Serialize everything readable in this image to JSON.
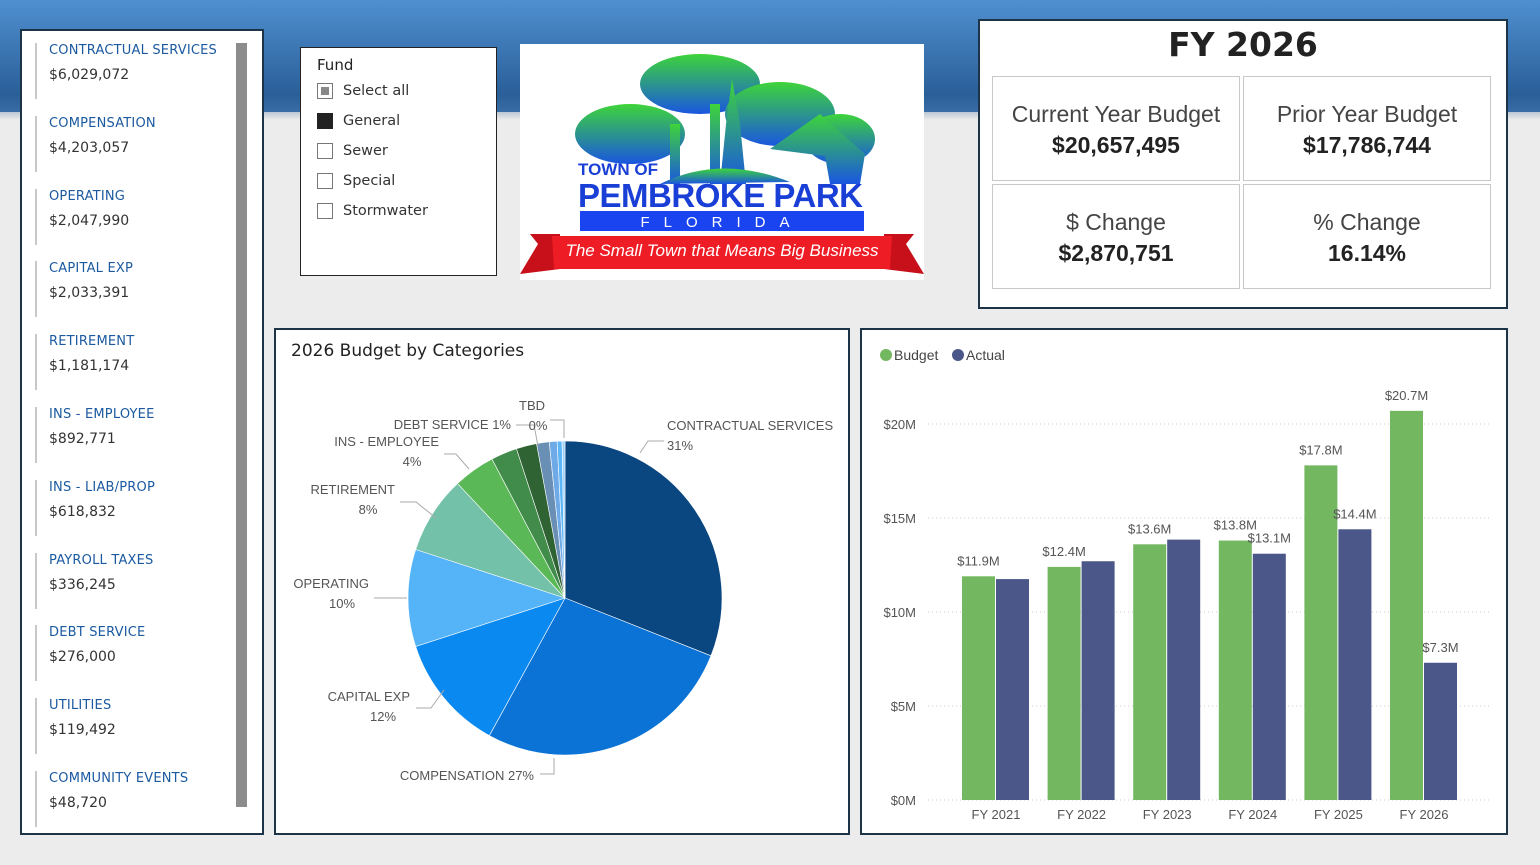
{
  "categories_list": [
    {
      "name": "CONTRACTUAL SERVICES",
      "value": "$6,029,072"
    },
    {
      "name": "COMPENSATION",
      "value": "$4,203,057"
    },
    {
      "name": "OPERATING",
      "value": "$2,047,990"
    },
    {
      "name": "CAPITAL EXP",
      "value": "$2,033,391"
    },
    {
      "name": "RETIREMENT",
      "value": "$1,181,174"
    },
    {
      "name": "INS - EMPLOYEE",
      "value": "$892,771"
    },
    {
      "name": "INS - LIAB/PROP",
      "value": "$618,832"
    },
    {
      "name": "PAYROLL TAXES",
      "value": "$336,245"
    },
    {
      "name": "DEBT SERVICE",
      "value": "$276,000"
    },
    {
      "name": "UTILITIES",
      "value": "$119,492"
    },
    {
      "name": "COMMUNITY EVENTS",
      "value": "$48,720"
    }
  ],
  "fund_filter": {
    "title": "Fund",
    "items": [
      {
        "label": "Select all",
        "state": "partial"
      },
      {
        "label": "General",
        "state": "checked"
      },
      {
        "label": "Sewer",
        "state": "unchecked"
      },
      {
        "label": "Special",
        "state": "unchecked"
      },
      {
        "label": "Stormwater",
        "state": "unchecked"
      }
    ]
  },
  "logo": {
    "line1": "TOWN OF",
    "line2": "PEMBROKE PARK",
    "line3": "F L O R I D A",
    "tagline": "The Small Town that Means Big Business"
  },
  "kpi": {
    "title": "FY 2026",
    "cards": [
      {
        "label": "Current Year Budget",
        "value": "$20,657,495"
      },
      {
        "label": "Prior Year Budget",
        "value": "$17,786,744"
      },
      {
        "label": "$ Change",
        "value": "$2,870,751"
      },
      {
        "label": "% Change",
        "value": "16.14%"
      }
    ]
  },
  "chart_data": [
    {
      "type": "pie",
      "title": "2026 Budget by Categories",
      "slices": [
        {
          "name": "CONTRACTUAL SERVICES",
          "percent": 31,
          "label": "31%",
          "color": "#0a4680"
        },
        {
          "name": "COMPENSATION",
          "percent": 27,
          "label": "27%",
          "color": "#0c73d6"
        },
        {
          "name": "CAPITAL EXP",
          "percent": 12,
          "label": "12%",
          "color": "#0a8af0"
        },
        {
          "name": "OPERATING",
          "percent": 10,
          "label": "10%",
          "color": "#55b3f8"
        },
        {
          "name": "RETIREMENT",
          "percent": 8,
          "label": "8%",
          "color": "#73c1a8"
        },
        {
          "name": "INS - EMPLOYEE",
          "percent": 4.3,
          "label": "4%",
          "color": "#5ab956"
        },
        {
          "name": "INS - LIAB/PROP",
          "percent": 2.7,
          "color": "#418c4a"
        },
        {
          "name": "PAYROLL TAXES",
          "percent": 2.1,
          "color": "#2f6334"
        },
        {
          "name": "DEBT SERVICE",
          "percent": 1.3,
          "label": "1%",
          "color": "#6a8fb5"
        },
        {
          "name": "UTILITIES",
          "percent": 0.8,
          "color": "#6ea9e8"
        },
        {
          "name": "COMMUNITY EVENTS",
          "percent": 0.5,
          "color": "#5bb5f7"
        },
        {
          "name": "TBD",
          "percent": 0.3,
          "label": "0%",
          "color": "#9fd2fb"
        }
      ]
    },
    {
      "type": "bar",
      "legend": [
        "Budget",
        "Actual"
      ],
      "legend_position": "top-left",
      "categories": [
        "FY 2021",
        "FY 2022",
        "FY 2023",
        "FY 2024",
        "FY 2025",
        "FY 2026"
      ],
      "series": [
        {
          "name": "Budget",
          "color": "#73b860",
          "values": [
            11.9,
            12.4,
            13.6,
            13.8,
            17.8,
            20.7
          ],
          "labels": [
            "$11.9M",
            "$12.4M",
            "$13.6M",
            "$13.8M",
            "$17.8M",
            "$20.7M"
          ]
        },
        {
          "name": "Actual",
          "color": "#4a5788",
          "values": [
            11.75,
            12.7,
            13.85,
            13.1,
            14.4,
            7.3
          ],
          "labels": [
            null,
            null,
            null,
            "$13.1M",
            "$14.4M",
            "$7.3M"
          ]
        }
      ],
      "yticks": [
        "$0M",
        "$5M",
        "$10M",
        "$15M",
        "$20M"
      ],
      "ylim": [
        0,
        20.7
      ],
      "unit": "millions USD",
      "grid": true
    }
  ]
}
